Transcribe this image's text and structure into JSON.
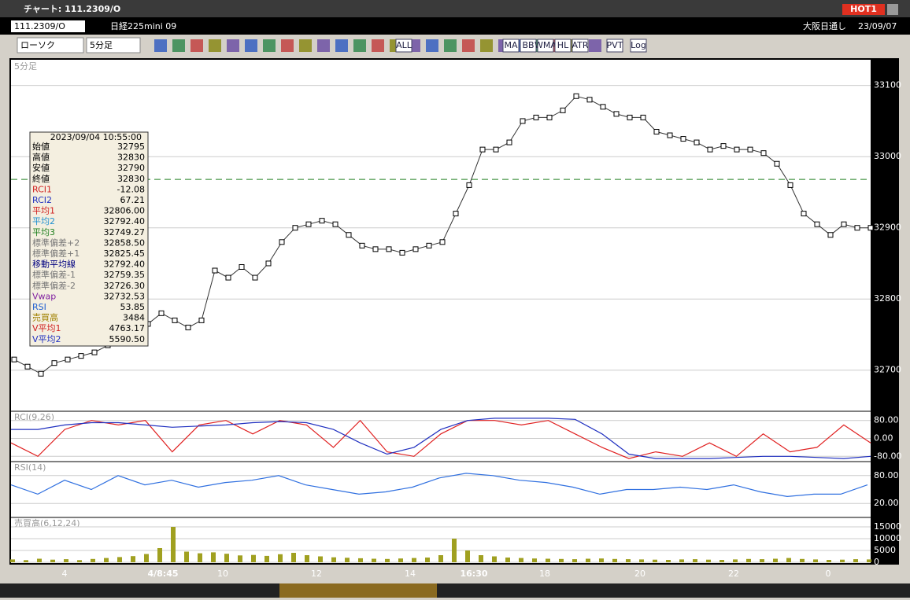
{
  "window": {
    "title": "チャート: 111.2309/O",
    "badge": "HOT1"
  },
  "header": {
    "symbol": "111.2309/O",
    "name": "日経225mini 09",
    "market": "大阪日通し",
    "date": "23/09/07"
  },
  "toolbar": {
    "chart_kind": "ローソク",
    "interval": "5分足",
    "buttons": [
      "ALL",
      "MA",
      "BB",
      "WMA",
      "HL",
      "ATR",
      "PVT",
      "Log"
    ]
  },
  "info_panel": {
    "datetime": "2023/09/04 10:55:00",
    "rows": [
      [
        "始値",
        "32795"
      ],
      [
        "高値",
        "32830"
      ],
      [
        "安値",
        "32790"
      ],
      [
        "終値",
        "32830"
      ],
      [
        "RCI1",
        "-12.08"
      ],
      [
        "RCI2",
        "67.21"
      ],
      [
        "平均1",
        "32806.00"
      ],
      [
        "平均2",
        "32792.40"
      ],
      [
        "平均3",
        "32749.27"
      ],
      [
        "標準偏差+2",
        "32858.50"
      ],
      [
        "標準偏差+1",
        "32825.45"
      ],
      [
        "移動平均線",
        "32792.40"
      ],
      [
        "標準偏差-1",
        "32759.35"
      ],
      [
        "標準偏差-2",
        "32726.30"
      ],
      [
        "Vwap",
        "32732.53"
      ],
      [
        "RSI",
        "53.85"
      ],
      [
        "売買高",
        "3484"
      ],
      [
        "V平均1",
        "4763.17"
      ],
      [
        "V平均2",
        "5590.50"
      ]
    ]
  },
  "x_labels": [
    "4",
    "4/8:45",
    "10",
    "12",
    "14",
    "16:30",
    "18",
    "20",
    "22",
    "0"
  ],
  "chart_data": [
    {
      "type": "line",
      "title": "5分足",
      "color": "#ffffff",
      "ylim": [
        32650,
        33135
      ],
      "yticks": [
        32700,
        32800,
        32900,
        33000,
        33100
      ],
      "reference_line": 32968,
      "values": [
        32715,
        32705,
        32695,
        32710,
        32715,
        32720,
        32725,
        32735,
        32740,
        32760,
        32765,
        32780,
        32770,
        32760,
        32770,
        32840,
        32830,
        32845,
        32830,
        32850,
        32880,
        32900,
        32905,
        32910,
        32905,
        32890,
        32875,
        32870,
        32870,
        32865,
        32870,
        32875,
        32880,
        32920,
        32960,
        33010,
        33010,
        33020,
        33050,
        33055,
        33055,
        33065,
        33085,
        33080,
        33070,
        33060,
        33055,
        33055,
        33035,
        33030,
        33025,
        33020,
        33010,
        33015,
        33010,
        33010,
        33005,
        32990,
        32960,
        32920,
        32905,
        32890,
        32905,
        32900,
        32900
      ]
    },
    {
      "type": "line",
      "title": "RCI(9,26)",
      "ylim": [
        -100,
        100
      ],
      "yticks": [
        {
          "value": 80,
          "label": "80.00"
        },
        {
          "value": 0,
          "label": "0.00"
        },
        {
          "value": -80,
          "label": "-80.00"
        }
      ],
      "series": [
        {
          "name": "RCI1",
          "color": "#e02020",
          "values": [
            -20,
            -80,
            40,
            80,
            60,
            80,
            -60,
            60,
            80,
            20,
            80,
            60,
            -40,
            80,
            -60,
            -80,
            20,
            80,
            80,
            60,
            80,
            20,
            -40,
            -90,
            -60,
            -80,
            -20,
            -80,
            20,
            -60,
            -40,
            60,
            -20
          ]
        },
        {
          "name": "RCI2",
          "color": "#2030c0",
          "values": [
            40,
            40,
            60,
            70,
            70,
            60,
            50,
            55,
            60,
            70,
            75,
            70,
            40,
            -20,
            -70,
            -40,
            40,
            80,
            90,
            90,
            90,
            85,
            20,
            -70,
            -90,
            -90,
            -90,
            -85,
            -80,
            -80,
            -85,
            -90,
            -80
          ]
        }
      ]
    },
    {
      "type": "line",
      "title": "RSI(14)",
      "color": "#3070e0",
      "ylim": [
        0,
        100
      ],
      "yticks": [
        {
          "value": 80,
          "label": "80.00"
        },
        {
          "value": 20,
          "label": "20.00"
        }
      ],
      "values": [
        60,
        40,
        70,
        50,
        80,
        60,
        70,
        55,
        65,
        70,
        80,
        60,
        50,
        40,
        45,
        55,
        75,
        85,
        80,
        70,
        65,
        55,
        40,
        50,
        50,
        55,
        50,
        60,
        45,
        35,
        40,
        40,
        60
      ]
    },
    {
      "type": "bar",
      "title": "売買高(6,12,24)",
      "color": "#a0a020",
      "ylim": [
        0,
        17000
      ],
      "yticks": [
        15000,
        10000,
        5000,
        0
      ],
      "values": [
        1200,
        900,
        1500,
        1100,
        1300,
        900,
        1400,
        1800,
        2200,
        2600,
        3500,
        6000,
        15000,
        4500,
        3800,
        4200,
        3600,
        2900,
        3100,
        2700,
        3400,
        4000,
        3000,
        2500,
        2100,
        1900,
        1700,
        1500,
        1400,
        1600,
        1800,
        2000,
        3000,
        10000,
        5000,
        3000,
        2500,
        2000,
        1800,
        1600,
        1500,
        1400,
        1300,
        1500,
        1600,
        1400,
        1300,
        1200,
        1100,
        1000,
        1200,
        1300,
        1100,
        1000,
        1200,
        1400,
        1300,
        1500,
        1800,
        1400,
        1200,
        1000,
        1100,
        1300,
        1200
      ]
    }
  ]
}
